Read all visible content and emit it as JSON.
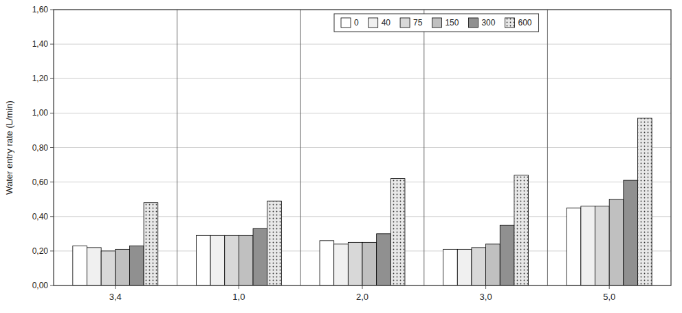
{
  "chart_data": {
    "type": "bar",
    "y_label": "Water entry rate (L/min)",
    "categories": [
      "3,4",
      "1,0",
      "2,0",
      "3,0",
      "5,0"
    ],
    "series": [
      {
        "name": "0",
        "color": "#ffffff",
        "values": [
          0.23,
          0.29,
          0.26,
          0.21,
          0.45
        ]
      },
      {
        "name": "40",
        "color": "#f0f0f0",
        "values": [
          0.22,
          0.29,
          0.24,
          0.21,
          0.46
        ]
      },
      {
        "name": "75",
        "color": "#d8d8d8",
        "values": [
          0.2,
          0.29,
          0.25,
          0.22,
          0.46
        ]
      },
      {
        "name": "150",
        "color": "#c0c0c0",
        "values": [
          0.21,
          0.29,
          0.25,
          0.24,
          0.5
        ]
      },
      {
        "name": "300",
        "color": "#909090",
        "values": [
          0.23,
          0.33,
          0.3,
          0.35,
          0.61
        ]
      },
      {
        "name": "600",
        "color": "#e8e8e8",
        "values": [
          0.48,
          0.49,
          0.62,
          0.64,
          0.97
        ]
      }
    ],
    "ylim": [
      0.0,
      1.6
    ],
    "yticks": [
      {
        "value": 0.0,
        "label": "0,00"
      },
      {
        "value": 0.2,
        "label": "0,20"
      },
      {
        "value": 0.4,
        "label": "0,40"
      },
      {
        "value": 0.6,
        "label": "0,60"
      },
      {
        "value": 0.8,
        "label": "0,80"
      },
      {
        "value": 1.0,
        "label": "1,00"
      },
      {
        "value": 1.2,
        "label": "1,20"
      },
      {
        "value": 1.4,
        "label": "1,40"
      },
      {
        "value": 1.6,
        "label": "1,60"
      }
    ],
    "grid": true,
    "legend": "top"
  }
}
